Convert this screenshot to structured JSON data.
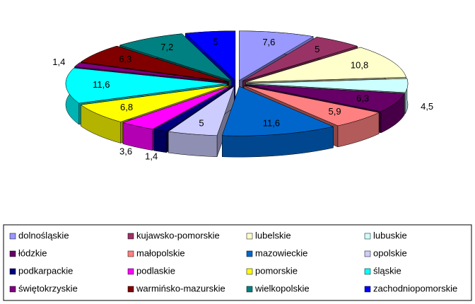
{
  "chart_data": {
    "type": "pie",
    "categories": [
      "dolnośląskie",
      "kujawsko-pomorskie",
      "lubelskie",
      "lubuskie",
      "łódzkie",
      "małopolskie",
      "mazowieckie",
      "opolskie",
      "podkarpackie",
      "podlaskie",
      "pomorskie",
      "śląskie",
      "świętokrzyskie",
      "warmińsko-mazurskie",
      "wielkopolskie",
      "zachodniopomorskie"
    ],
    "values": [
      7.6,
      5,
      10.8,
      4.5,
      6.3,
      5.9,
      11.6,
      5,
      1.4,
      3.6,
      6.8,
      11.6,
      1.4,
      6.3,
      7.2,
      5
    ],
    "value_labels": [
      "7,6",
      "5",
      "10,8",
      "4,5",
      "6,3",
      "5,9",
      "11,6",
      "5",
      "1,4",
      "3,6",
      "6,8",
      "11,6",
      "1,4",
      "6,3",
      "7,2",
      "5"
    ],
    "colors": [
      "#9999ff",
      "#993366",
      "#ffffcc",
      "#ccffff",
      "#660066",
      "#ff8080",
      "#0066cc",
      "#ccccff",
      "#000080",
      "#ff00ff",
      "#ffff00",
      "#00ffff",
      "#800080",
      "#800000",
      "#008080",
      "#0000ff"
    ],
    "legend": "bottom"
  }
}
